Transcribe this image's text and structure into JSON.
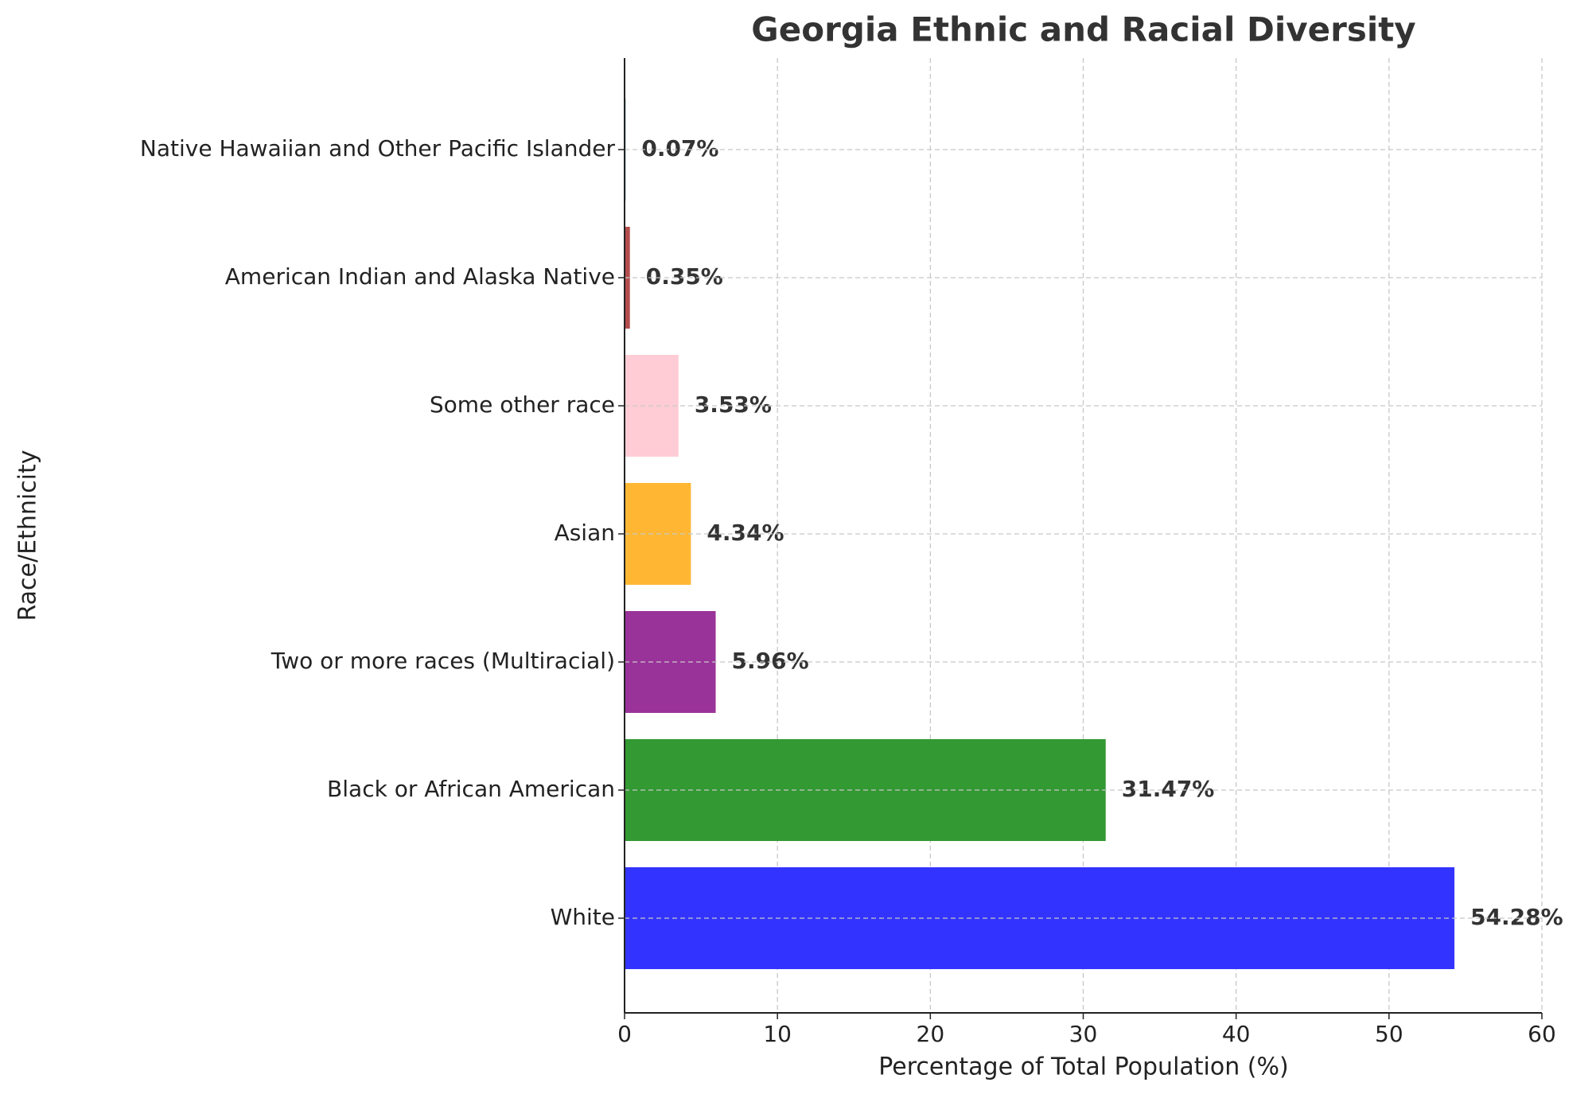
{
  "chart_data": {
    "type": "barh",
    "title": "Georgia Ethnic and Racial Diversity",
    "x_label": "Percentage of Total Population (%)",
    "y_label": "Race/Ethnicity",
    "categories": [
      "White",
      "Black or African American",
      "Two or more races (Multiracial)",
      "Asian",
      "Some other race",
      "American Indian and Alaska Native",
      "Native Hawaiian and Other Pacific Islander"
    ],
    "values": [
      54.28,
      31.47,
      5.96,
      4.34,
      3.53,
      0.35,
      0.07
    ],
    "value_labels": [
      "54.28%",
      "31.47%",
      "5.96%",
      "4.34%",
      "3.53%",
      "0.35%",
      "0.07%"
    ],
    "colors": [
      "#3333ff",
      "#339933",
      "#993399",
      "#ffb733",
      "#ffccd5",
      "#b34d4d",
      "#4d9999"
    ],
    "xlim": [
      0,
      60
    ],
    "xticks": [
      0,
      10,
      20,
      30,
      40,
      50,
      60
    ],
    "grid": true
  }
}
